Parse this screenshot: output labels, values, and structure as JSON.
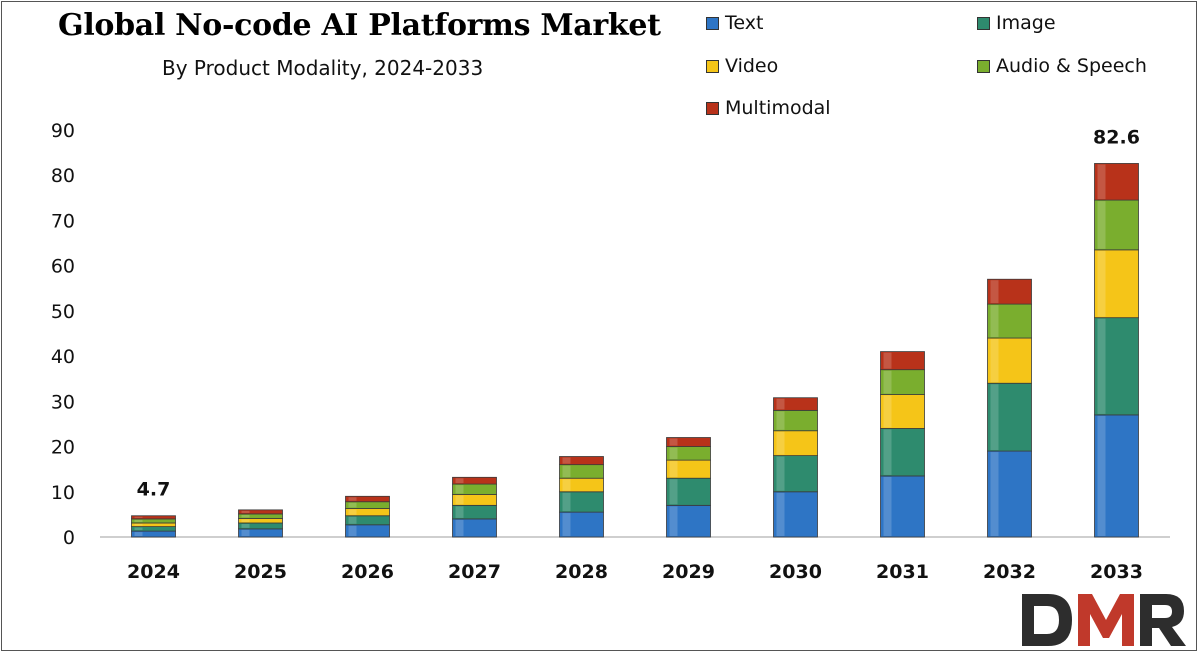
{
  "chart_data": {
    "type": "bar",
    "stacked": true,
    "title": "Global No-code AI Platforms Market",
    "subtitle": "By Product Modality, 2024-2033",
    "categories": [
      "2024",
      "2025",
      "2026",
      "2027",
      "2028",
      "2029",
      "2030",
      "2031",
      "2032",
      "2033"
    ],
    "series": [
      {
        "name": "Text",
        "color": "#2E75C5",
        "values": [
          1.3,
          1.8,
          2.7,
          4.0,
          5.5,
          7.0,
          10.0,
          13.5,
          19.0,
          27.0
        ]
      },
      {
        "name": "Image",
        "color": "#2E8B6E",
        "values": [
          1.0,
          1.3,
          2.0,
          3.0,
          4.5,
          6.0,
          8.0,
          10.5,
          15.0,
          21.5
        ]
      },
      {
        "name": "Video",
        "color": "#F5C518",
        "values": [
          0.8,
          1.0,
          1.6,
          2.4,
          3.0,
          4.0,
          5.5,
          7.5,
          10.0,
          15.0
        ]
      },
      {
        "name": "Audio & Speech",
        "color": "#7AAE2E",
        "values": [
          0.9,
          1.0,
          1.5,
          2.3,
          3.0,
          3.0,
          4.5,
          5.5,
          7.5,
          11.0
        ]
      },
      {
        "name": "Multimodal",
        "color": "#B8321A",
        "values": [
          0.7,
          0.9,
          1.2,
          1.5,
          1.8,
          2.0,
          2.8,
          4.0,
          5.5,
          8.1
        ]
      }
    ],
    "data_labels": [
      {
        "category": "2024",
        "text": "4.7"
      },
      {
        "category": "2033",
        "text": "82.6"
      }
    ],
    "ylim": [
      0,
      90
    ],
    "yticks": [
      0,
      10,
      20,
      30,
      40,
      50,
      60,
      70,
      80,
      90
    ],
    "xlabel": "",
    "ylabel": "",
    "grid": false,
    "legend_position": "top-right"
  },
  "logo": {
    "text": "DMR",
    "colors": {
      "d": "#2D2D2D",
      "m": "#C0392B",
      "r": "#2D2D2D"
    }
  }
}
